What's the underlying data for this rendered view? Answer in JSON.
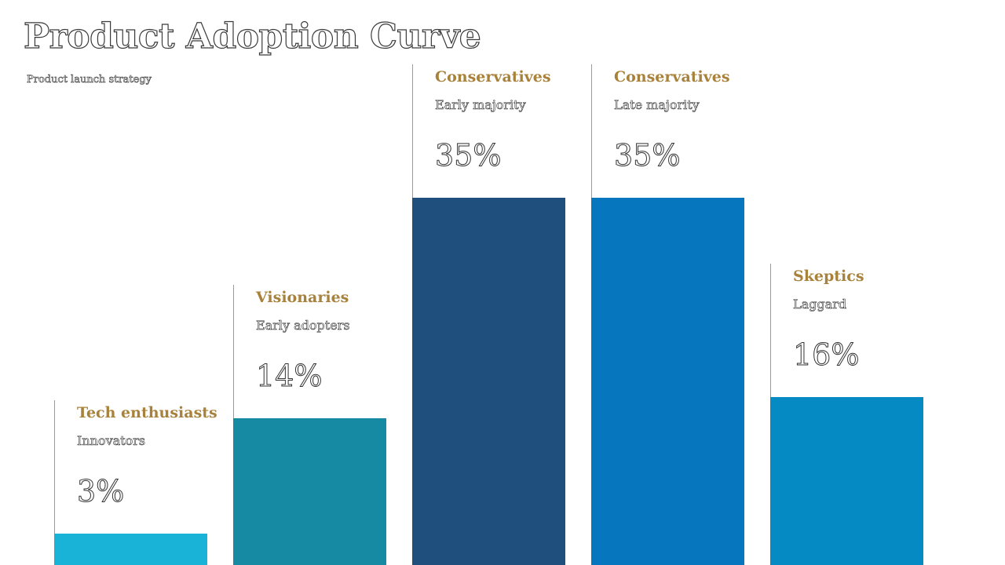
{
  "title": "Product Adoption Curve",
  "subtitle": "Product launch strategy",
  "chart_data": {
    "type": "bar",
    "categories": [
      "Tech enthusiasts",
      "Visionaries",
      "Conservatives",
      "Conservatives",
      "Skeptics"
    ],
    "segments": [
      "Innovators",
      "Early adopters",
      "Early majority",
      "Late majority",
      "Laggard"
    ],
    "values": [
      3,
      14,
      35,
      35,
      16
    ],
    "value_labels": [
      "3%",
      "14%",
      "35%",
      "35%",
      "16%"
    ],
    "colors": [
      "#1ab3d8",
      "#168aa3",
      "#1e4f7d",
      "#0677be",
      "#068ac3"
    ],
    "label_color": "#a8823b",
    "ylim": [
      0,
      35
    ]
  }
}
